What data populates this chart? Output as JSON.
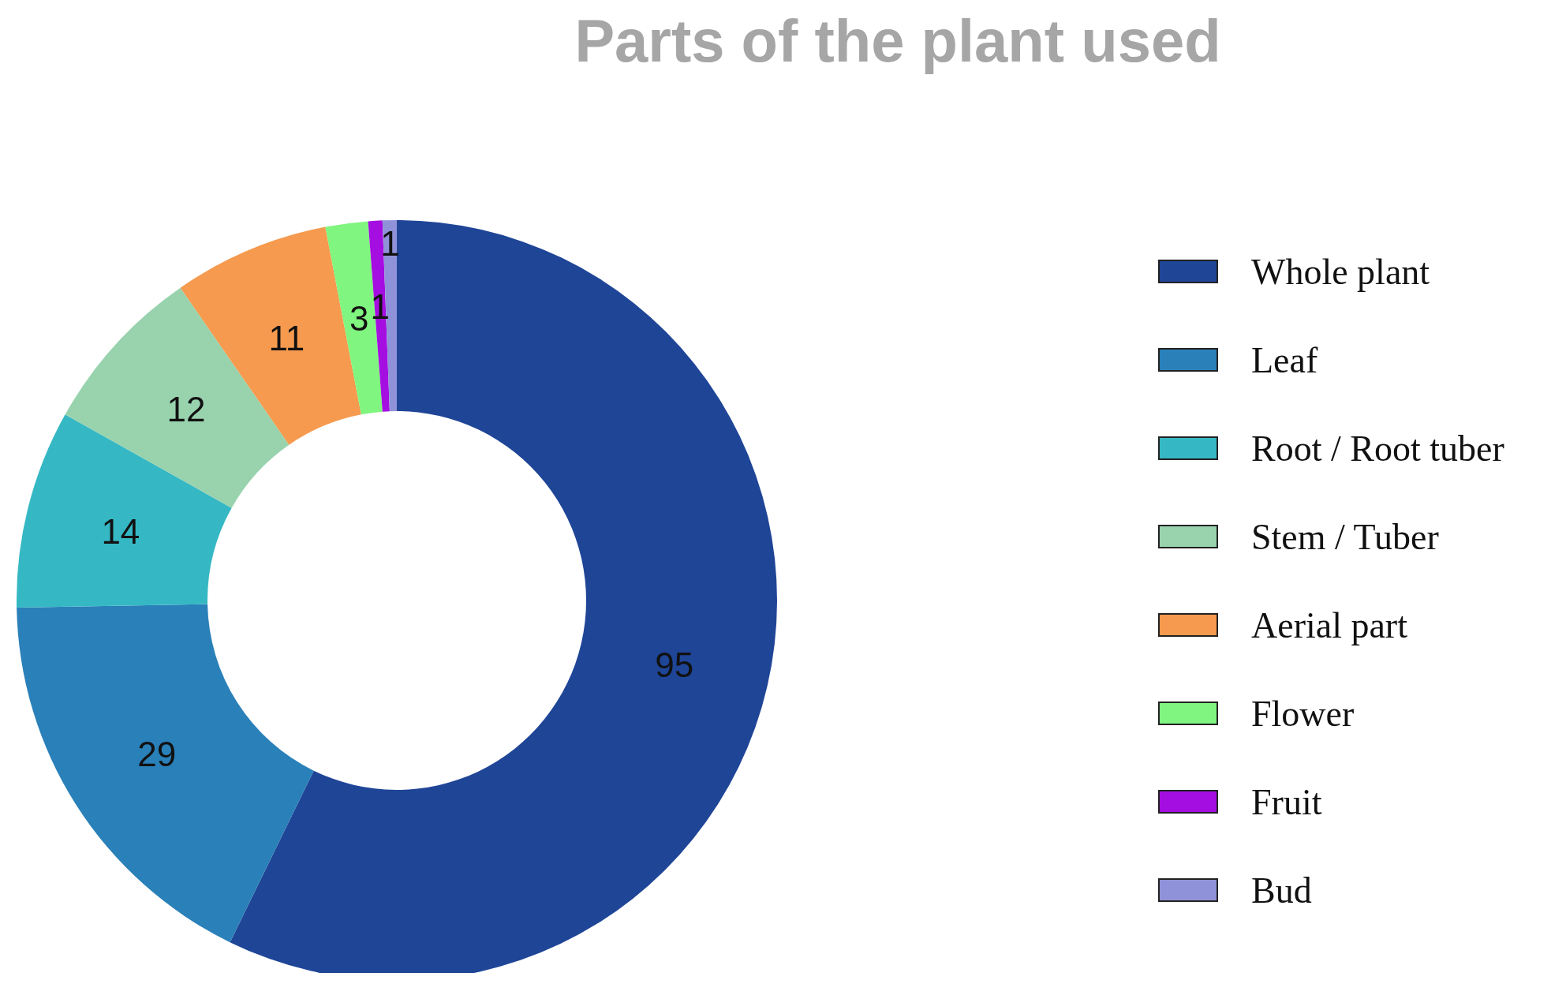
{
  "chart_data": {
    "type": "donut",
    "title": "Parts of the plant used",
    "categories": [
      "Whole plant",
      "Leaf",
      "Root / Root tuber",
      "Stem / Tuber",
      "Aerial part",
      "Flower",
      "Fruit",
      "Bud"
    ],
    "values": [
      95,
      29,
      14,
      12,
      11,
      3,
      1,
      1
    ],
    "colors": [
      "#1f4597",
      "#2a80b9",
      "#35b8c4",
      "#98d3ae",
      "#f59a4e",
      "#80f57f",
      "#a50ee0",
      "#8f92d8"
    ],
    "data_labels": true,
    "legend": "right"
  }
}
